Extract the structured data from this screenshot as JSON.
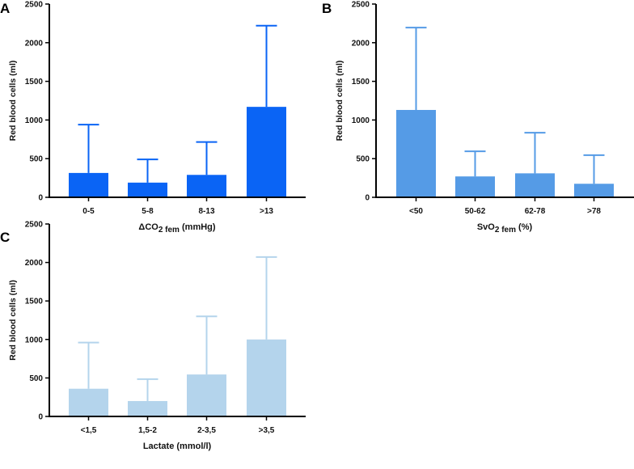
{
  "chart_data": [
    {
      "type": "bar",
      "panel": "A",
      "categories": [
        "0-5",
        "5-8",
        "8-13",
        ">13"
      ],
      "values": [
        315,
        190,
        290,
        1170
      ],
      "error_upper": [
        940,
        490,
        715,
        2220
      ],
      "xlabel_main": "ΔCO",
      "xlabel_sub": "2 fem",
      "xlabel_unit": " (mmHg)",
      "ylabel": "Red blood cells (ml)",
      "ylim": [
        0,
        2500
      ],
      "yticks": [
        0,
        500,
        1000,
        1500,
        2000,
        2500
      ],
      "color": "#0a64f5",
      "grid": false
    },
    {
      "type": "bar",
      "panel": "B",
      "categories": [
        "<50",
        "50-62",
        "62-78",
        ">78"
      ],
      "values": [
        1130,
        270,
        310,
        175
      ],
      "error_upper": [
        2195,
        595,
        835,
        545
      ],
      "xlabel_main": "SvO",
      "xlabel_sub": "2 fem",
      "xlabel_unit": " (%)",
      "ylabel": "Red blood cells (ml)",
      "ylim": [
        0,
        2500
      ],
      "yticks": [
        0,
        500,
        1000,
        1500,
        2000,
        2500
      ],
      "color": "#559be6",
      "grid": false
    },
    {
      "type": "bar",
      "panel": "C",
      "categories": [
        "<1,5",
        "1,5-2",
        "2-3,5",
        ">3,5"
      ],
      "values": [
        360,
        200,
        545,
        1000
      ],
      "error_upper": [
        960,
        485,
        1300,
        2070
      ],
      "xlabel_main": "Lactate (mmol/l)",
      "xlabel_sub": "",
      "xlabel_unit": "",
      "ylabel": "Red blood cells (ml)",
      "ylim": [
        0,
        2500
      ],
      "yticks": [
        0,
        500,
        1000,
        1500,
        2000,
        2500
      ],
      "color": "#b4d4ec",
      "grid": false
    }
  ]
}
